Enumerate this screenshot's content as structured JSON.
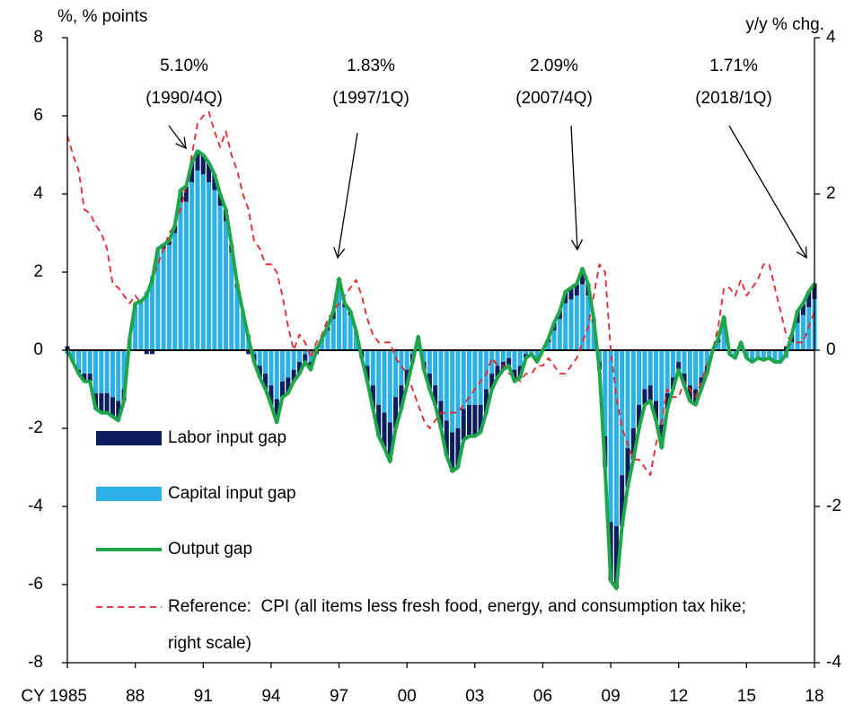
{
  "chart_data": {
    "type": "combo",
    "y_axis_label": "%, % points",
    "y2_axis_label": "y/y % chg.",
    "xlim": [
      1985,
      2018
    ],
    "xticks": [
      {
        "value": 1985,
        "label": "CY 1985"
      },
      {
        "value": 1988,
        "label": "88"
      },
      {
        "value": 1991,
        "label": "91"
      },
      {
        "value": 1994,
        "label": "94"
      },
      {
        "value": 1997,
        "label": "97"
      },
      {
        "value": 2000,
        "label": "00"
      },
      {
        "value": 2003,
        "label": "03"
      },
      {
        "value": 2006,
        "label": "06"
      },
      {
        "value": 2009,
        "label": "09"
      },
      {
        "value": 2012,
        "label": "12"
      },
      {
        "value": 2015,
        "label": "15"
      },
      {
        "value": 2018,
        "label": "18"
      }
    ],
    "ylim": [
      -8,
      8
    ],
    "yticks": [
      -8,
      -6,
      -4,
      -2,
      0,
      2,
      4,
      6,
      8
    ],
    "y2lim": [
      -4,
      4
    ],
    "y2ticks": [
      -4,
      -2,
      0,
      2,
      4
    ],
    "annotations": [
      {
        "lines": [
          "5.10%",
          "(1990/4Q)"
        ]
      },
      {
        "lines": [
          "1.83%",
          "(1997/1Q)"
        ]
      },
      {
        "lines": [
          "2.09%",
          "(2007/4Q)"
        ]
      },
      {
        "lines": [
          "1.71%",
          "(2018/1Q)"
        ]
      }
    ],
    "x": [
      1985,
      1985.25,
      1985.5,
      1985.75,
      1986,
      1986.25,
      1986.5,
      1986.75,
      1987,
      1987.25,
      1987.5,
      1987.75,
      1988,
      1988.25,
      1988.5,
      1988.75,
      1989,
      1989.25,
      1989.5,
      1989.75,
      1990,
      1990.25,
      1990.5,
      1990.75,
      1991,
      1991.25,
      1991.5,
      1991.75,
      1992,
      1992.25,
      1992.5,
      1992.75,
      1993,
      1993.25,
      1993.5,
      1993.75,
      1994,
      1994.25,
      1994.5,
      1994.75,
      1995,
      1995.25,
      1995.5,
      1995.75,
      1996,
      1996.25,
      1996.5,
      1996.75,
      1997,
      1997.25,
      1997.5,
      1997.75,
      1998,
      1998.25,
      1998.5,
      1998.75,
      1999,
      1999.25,
      1999.5,
      1999.75,
      2000,
      2000.25,
      2000.5,
      2000.75,
      2001,
      2001.25,
      2001.5,
      2001.75,
      2002,
      2002.25,
      2002.5,
      2002.75,
      2003,
      2003.25,
      2003.5,
      2003.75,
      2004,
      2004.25,
      2004.5,
      2004.75,
      2005,
      2005.25,
      2005.5,
      2005.75,
      2006,
      2006.25,
      2006.5,
      2006.75,
      2007,
      2007.25,
      2007.5,
      2007.75,
      2008,
      2008.25,
      2008.5,
      2008.75,
      2009,
      2009.25,
      2009.5,
      2009.75,
      2010,
      2010.25,
      2010.5,
      2010.75,
      2011,
      2011.25,
      2011.5,
      2011.75,
      2012,
      2012.25,
      2012.5,
      2012.75,
      2013,
      2013.25,
      2013.5,
      2013.75,
      2014,
      2014.25,
      2014.5,
      2014.75,
      2015,
      2015.25,
      2015.5,
      2015.75,
      2016,
      2016.25,
      2016.5,
      2016.75,
      2017,
      2017.25,
      2017.5,
      2017.75,
      2018
    ],
    "series": [
      {
        "name": "Labor input gap",
        "mark": "bar",
        "color": "#0b1f5e",
        "values": [
          0.1,
          0,
          -0.1,
          -0.2,
          -0.2,
          -0.4,
          -0.5,
          -0.5,
          -0.5,
          -0.5,
          -0.3,
          0,
          0,
          0,
          -0.1,
          -0.1,
          0,
          0.1,
          0.1,
          0.2,
          0.3,
          0.4,
          0.5,
          0.5,
          0.5,
          0.5,
          0.4,
          0.3,
          0.3,
          0.2,
          0.1,
          0,
          -0.1,
          -0.2,
          -0.3,
          -0.4,
          -0.5,
          -0.6,
          -0.4,
          -0.4,
          -0.3,
          -0.3,
          -0.2,
          -0.2,
          -0.1,
          0,
          0.1,
          0.2,
          0.2,
          0.1,
          0.1,
          0,
          -0.2,
          -0.4,
          -0.6,
          -0.8,
          -0.9,
          -1.0,
          -0.8,
          -0.6,
          -0.4,
          -0.2,
          0,
          -0.2,
          -0.4,
          -0.5,
          -0.7,
          -0.9,
          -1.0,
          -1.0,
          -0.8,
          -0.8,
          -0.8,
          -0.7,
          -0.6,
          -0.4,
          -0.3,
          -0.2,
          -0.2,
          -0.3,
          -0.3,
          -0.1,
          0,
          -0.1,
          0,
          0.1,
          0.2,
          0.2,
          0.3,
          0.3,
          0.3,
          0.4,
          0.3,
          0.1,
          -0.2,
          -0.8,
          -1.5,
          -1.6,
          -1.3,
          -1.0,
          -0.8,
          -0.6,
          -0.4,
          -0.4,
          -0.5,
          -0.6,
          -0.4,
          -0.3,
          -0.2,
          -0.3,
          -0.4,
          -0.4,
          -0.3,
          -0.2,
          0,
          0.1,
          0.2,
          0,
          0,
          0.1,
          0,
          0,
          0,
          0,
          0,
          0,
          0,
          0.1,
          0.2,
          0.3,
          0.3,
          0.4,
          0.4
        ]
      },
      {
        "name": "Capital input gap",
        "mark": "bar",
        "color": "#2eb0e6",
        "values": [
          -0.1,
          -0.3,
          -0.5,
          -0.6,
          -0.6,
          -1.1,
          -1.1,
          -1.1,
          -1.2,
          -1.3,
          -1.0,
          0.3,
          1.2,
          1.25,
          1.5,
          1.9,
          2.6,
          2.6,
          2.7,
          3.0,
          3.8,
          3.8,
          4.3,
          4.6,
          4.5,
          4.3,
          4.1,
          3.7,
          3.3,
          2.5,
          1.6,
          1.0,
          0.4,
          -0.1,
          -0.4,
          -0.6,
          -0.9,
          -1.25,
          -0.8,
          -0.7,
          -0.5,
          -0.3,
          -0.1,
          -0.3,
          0.1,
          0.3,
          0.5,
          0.8,
          1.63,
          1.1,
          0.9,
          0.5,
          0,
          -0.4,
          -0.9,
          -1.4,
          -1.6,
          -1.85,
          -1.2,
          -0.9,
          -0.5,
          -0.1,
          0.35,
          -0.3,
          -0.6,
          -0.9,
          -1.3,
          -1.8,
          -2.1,
          -2.0,
          -1.5,
          -1.4,
          -1.4,
          -1.4,
          -1.0,
          -0.6,
          -0.4,
          -0.3,
          -0.2,
          -0.5,
          -0.4,
          -0.1,
          -0.1,
          -0.2,
          0,
          0.2,
          0.5,
          0.8,
          1.2,
          1.3,
          1.4,
          1.69,
          1.4,
          0.7,
          -0.3,
          -2.2,
          -4.4,
          -4.5,
          -3.2,
          -2.5,
          -2.0,
          -1.4,
          -1.0,
          -0.9,
          -1.3,
          -1.9,
          -1.1,
          -0.7,
          -0.3,
          -0.6,
          -0.9,
          -1.0,
          -0.7,
          -0.4,
          0,
          0.2,
          0.65,
          -0.1,
          -0.2,
          0.1,
          -0.2,
          -0.3,
          -0.2,
          -0.25,
          -0.2,
          -0.3,
          -0.3,
          -0.2,
          0.2,
          0.7,
          0.9,
          1.1,
          1.31
        ]
      },
      {
        "name": "Output gap",
        "mark": "line",
        "color": "#1da74a",
        "values": [
          0,
          -0.3,
          -0.6,
          -0.8,
          -0.8,
          -1.5,
          -1.6,
          -1.6,
          -1.7,
          -1.8,
          -1.3,
          0.3,
          1.2,
          1.25,
          1.4,
          1.8,
          2.6,
          2.7,
          2.8,
          3.2,
          4.1,
          4.2,
          4.8,
          5.1,
          5.0,
          4.8,
          4.5,
          4.0,
          3.6,
          2.7,
          1.7,
          1.0,
          0.3,
          -0.3,
          -0.7,
          -1.0,
          -1.4,
          -1.85,
          -1.2,
          -1.1,
          -0.8,
          -0.6,
          -0.3,
          -0.5,
          0,
          0.3,
          0.6,
          1.0,
          1.83,
          1.2,
          1.0,
          0.5,
          -0.2,
          -0.8,
          -1.5,
          -2.2,
          -2.5,
          -2.85,
          -2.0,
          -1.5,
          -0.9,
          -0.3,
          0.35,
          -0.5,
          -1.0,
          -1.4,
          -2.0,
          -2.7,
          -3.1,
          -3.0,
          -2.3,
          -2.2,
          -2.2,
          -2.1,
          -1.6,
          -1.0,
          -0.7,
          -0.5,
          -0.4,
          -0.8,
          -0.7,
          -0.2,
          -0.1,
          -0.3,
          0,
          0.3,
          0.7,
          1.0,
          1.5,
          1.6,
          1.7,
          2.09,
          1.7,
          0.8,
          -0.5,
          -3.0,
          -5.9,
          -6.1,
          -4.5,
          -3.5,
          -2.8,
          -2.0,
          -1.4,
          -1.3,
          -1.8,
          -2.5,
          -1.5,
          -1.0,
          -0.5,
          -0.9,
          -1.3,
          -1.4,
          -1.0,
          -0.6,
          0,
          0.3,
          0.85,
          -0.1,
          -0.2,
          0.2,
          -0.2,
          -0.3,
          -0.2,
          -0.25,
          -0.2,
          -0.3,
          -0.3,
          -0.1,
          0.4,
          1.0,
          1.2,
          1.5,
          1.71
        ]
      },
      {
        "name": "Reference:  CPI (all items less fresh food, energy, and consumption tax hike; right scale)",
        "mark": "line",
        "dashed": true,
        "axis": "y2",
        "color": "#e8242b",
        "values": [
          2.75,
          2.5,
          2.3,
          1.8,
          1.75,
          1.6,
          1.5,
          1.3,
          0.85,
          0.8,
          0.7,
          0.6,
          0.7,
          0.6,
          0.7,
          0.9,
          1.1,
          1.3,
          1.5,
          1.6,
          1.8,
          2.1,
          2.5,
          2.9,
          3.0,
          3.05,
          2.8,
          2.6,
          2.8,
          2.5,
          2.3,
          2.0,
          1.8,
          1.4,
          1.3,
          1.1,
          1.1,
          1.0,
          0.7,
          0.3,
          0,
          0.2,
          0.1,
          -0.1,
          0.1,
          0.2,
          0.4,
          0.5,
          0.6,
          0.7,
          0.8,
          0.9,
          0.7,
          0.4,
          0.2,
          0.1,
          0.1,
          0.1,
          -0.1,
          -0.2,
          -0.3,
          -0.5,
          -0.7,
          -0.9,
          -1.0,
          -0.9,
          -0.8,
          -0.8,
          -0.8,
          -0.8,
          -0.7,
          -0.6,
          -0.5,
          -0.4,
          -0.3,
          -0.1,
          -0.2,
          -0.2,
          -0.3,
          -0.3,
          -0.4,
          -0.3,
          -0.3,
          -0.2,
          -0.2,
          -0.1,
          -0.2,
          -0.3,
          -0.3,
          -0.2,
          -0.1,
          0.1,
          0.3,
          0.7,
          1.1,
          1.0,
          0,
          -0.6,
          -1.0,
          -1.2,
          -1.4,
          -1.4,
          -1.5,
          -1.6,
          -1.2,
          -0.9,
          -0.5,
          -0.6,
          -0.6,
          -0.4,
          -0.5,
          -0.6,
          -0.4,
          -0.2,
          0,
          0.3,
          0.8,
          0.8,
          0.7,
          0.9,
          0.7,
          0.8,
          0.9,
          1.1,
          1.1,
          0.8,
          0.5,
          0.2,
          0.1,
          0.1,
          0.1,
          0.3,
          0.5
        ]
      }
    ]
  }
}
